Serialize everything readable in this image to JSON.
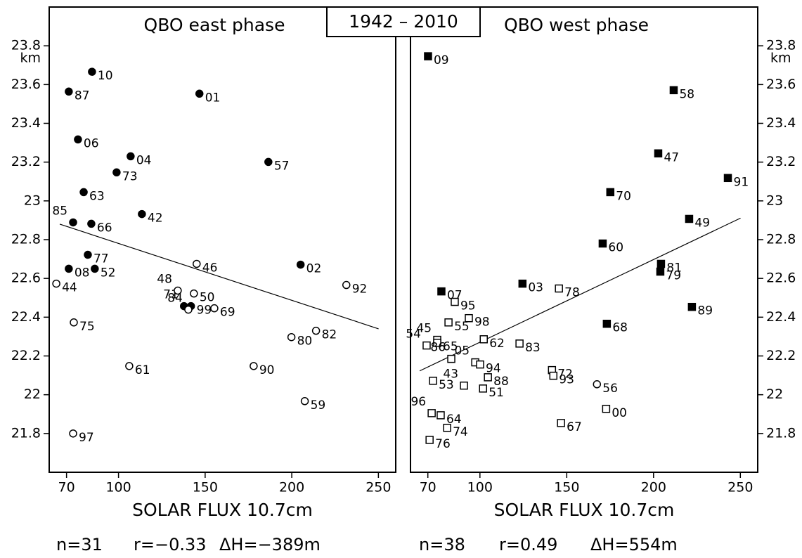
{
  "title": "1942 – 2010",
  "chart_data": [
    {
      "type": "scatter",
      "title": "QBO east phase",
      "xlabel": "SOLAR FLUX 10.7cm",
      "ylabel": "km",
      "y_axis_side": "left",
      "xlim": [
        60,
        260
      ],
      "xticks": [
        70,
        100,
        150,
        200,
        250
      ],
      "ylim": [
        21.6,
        24.0
      ],
      "yticks": [
        21.8,
        22,
        22.2,
        22.4,
        22.6,
        22.8,
        23,
        23.2,
        23.4,
        23.6,
        23.8
      ],
      "annotations": [
        "n=31",
        "r=−0.33",
        "ΔH=−389m"
      ],
      "trend": {
        "x": [
          66.1,
          250.1
        ],
        "y": [
          22.88,
          22.34
        ]
      },
      "series": [
        {
          "color": "#000",
          "marker": "circle",
          "filled": true,
          "labels": [
            "10",
            "87",
            "01",
            "06",
            "04",
            "73",
            "57",
            "63",
            "42",
            "85",
            "66",
            "77",
            "08",
            "52",
            "02",
            "71",
            "99"
          ],
          "x": [
            84.7,
            71.3,
            146.7,
            76.6,
            107,
            98.9,
            186.5,
            79.9,
            113.5,
            73.8,
            84.3,
            82.3,
            71.3,
            86.3,
            205.1,
            137.8,
            141.8
          ],
          "values": [
            23.666,
            23.564,
            23.553,
            23.317,
            23.23,
            23.147,
            23.201,
            23.045,
            22.932,
            22.889,
            22.882,
            22.722,
            22.65,
            22.65,
            22.671,
            22.457,
            22.457
          ]
        },
        {
          "color": "#000",
          "marker": "circle",
          "filled": false,
          "labels": [
            "44",
            "46",
            "48",
            "50",
            "69",
            "84",
            "92",
            "75",
            "80",
            "82",
            "61",
            "90",
            "59",
            "97"
          ],
          "x": [
            64.1,
            145.1,
            134.2,
            143.5,
            155.3,
            140.3,
            231.5,
            74.2,
            199.8,
            214,
            106.2,
            178,
            207.5,
            73.8
          ],
          "values": [
            22.573,
            22.675,
            22.537,
            22.522,
            22.446,
            22.439,
            22.566,
            22.373,
            22.297,
            22.33,
            22.148,
            22.148,
            21.967,
            21.8
          ]
        }
      ]
    },
    {
      "type": "scatter",
      "title": "QBO west phase",
      "xlabel": "SOLAR FLUX 10.7cm",
      "ylabel": "km",
      "y_axis_side": "right",
      "xlim": [
        60,
        260
      ],
      "xticks": [
        70,
        100,
        150,
        200,
        250
      ],
      "ylim": [
        21.6,
        24.0
      ],
      "yticks": [
        21.8,
        22,
        22.2,
        22.4,
        22.6,
        22.8,
        23,
        23.2,
        23.4,
        23.6,
        23.8
      ],
      "annotations": [
        "n=38",
        "r=0.49",
        "ΔH=554m"
      ],
      "trend": {
        "x": [
          65.3,
          250.1
        ],
        "y": [
          22.123,
          22.911
        ]
      },
      "series": [
        {
          "color": "#000",
          "marker": "square",
          "filled": true,
          "labels": [
            "09",
            "58",
            "47",
            "91",
            "70",
            "49",
            "60",
            "81",
            "79",
            "07",
            "03",
            "89",
            "68"
          ],
          "x": [
            70.1,
            211.6,
            202.7,
            242.8,
            175.1,
            220.5,
            170.7,
            204.3,
            203.9,
            77.8,
            124.5,
            222.1,
            173.1
          ],
          "values": [
            23.746,
            23.571,
            23.245,
            23.118,
            23.045,
            22.907,
            22.78,
            22.675,
            22.635,
            22.533,
            22.573,
            22.453,
            22.366
          ]
        },
        {
          "color": "#000",
          "marker": "square",
          "filled": false,
          "labels": [
            "78",
            "95",
            "98",
            "55",
            "45",
            "65",
            "54",
            "62",
            "83",
            "05",
            "94",
            "86",
            "53",
            "43",
            "51",
            "88",
            "72",
            "93",
            "00",
            "96",
            "64",
            "74",
            "67",
            "76"
          ],
          "x": [
            145.5,
            85.5,
            93.6,
            81.9,
            75.4,
            75.4,
            69.3,
            102.2,
            122.8,
            97.3,
            100.1,
            83.5,
            73,
            90.8,
            101.8,
            104.6,
            141.5,
            142.3,
            172.7,
            72.2,
            77.4,
            81.1,
            146.7,
            71
          ],
          "values": [
            22.548,
            22.479,
            22.395,
            22.373,
            22.283,
            22.268,
            22.254,
            22.286,
            22.264,
            22.167,
            22.156,
            22.185,
            22.072,
            22.047,
            22.032,
            22.09,
            22.127,
            22.098,
            21.927,
            21.905,
            21.894,
            21.829,
            21.854,
            21.767
          ]
        },
        {
          "color": "#000",
          "marker": "circle",
          "filled": false,
          "labels": [
            "56"
          ],
          "x": [
            167.4
          ],
          "values": [
            22.054
          ]
        }
      ]
    }
  ]
}
